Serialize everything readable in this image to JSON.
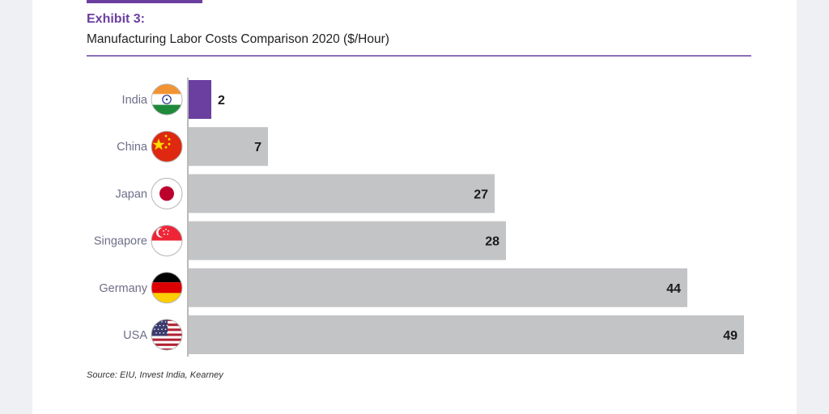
{
  "header": {
    "exhibit": "Exhibit 3:",
    "title": "Manufacturing Labor Costs Comparison 2020 ($/Hour)"
  },
  "source": "Source: EIU, Invest India, Kearney",
  "colors": {
    "highlight_bar": "#6b3fa0",
    "default_bar": "#c3c4c6",
    "accent": "#6b3fa0"
  },
  "chart_data": {
    "type": "bar",
    "orientation": "horizontal",
    "title": "Manufacturing Labor Costs Comparison 2020 ($/Hour)",
    "xlabel": "",
    "ylabel": "",
    "categories": [
      "India",
      "China",
      "Japan",
      "Singapore",
      "Germany",
      "USA"
    ],
    "values": [
      2,
      7,
      27,
      28,
      44,
      49
    ],
    "data_labels": [
      "2",
      "7",
      "27",
      "28",
      "44",
      "49"
    ],
    "flag_icons": [
      "india-flag-icon",
      "china-flag-icon",
      "japan-flag-icon",
      "singapore-flag-icon",
      "germany-flag-icon",
      "usa-flag-icon"
    ],
    "highlight_category": "India",
    "xlim": [
      0,
      49
    ],
    "grid": false,
    "legend": "none"
  }
}
